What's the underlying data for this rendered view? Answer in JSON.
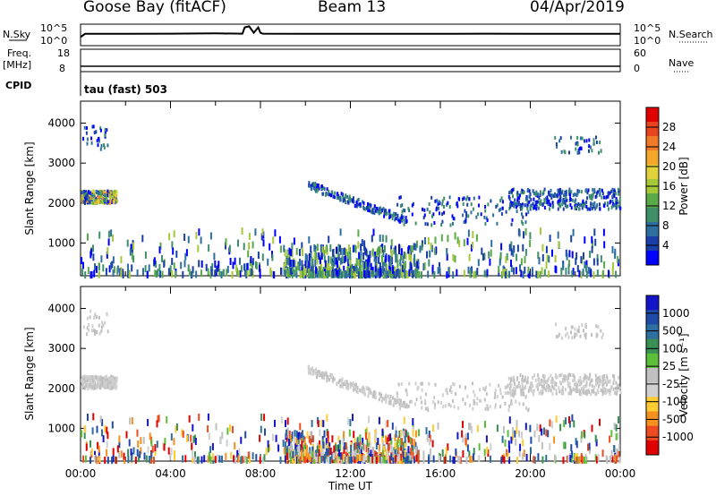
{
  "header": {
    "station": "Goose Bay (fitACF)",
    "beam": "Beam 13",
    "date": "04/Apr/2019"
  },
  "summary_labels": {
    "nsky": "N.Sky",
    "nsky_hi": "10^5",
    "nsky_lo": "10^0",
    "nsearch": "N.Search",
    "nsearch_hi": "10^5",
    "nsearch_lo": "10^0",
    "freq": "Freq.",
    "freq_unit": "[MHz]",
    "freq_hi": "18",
    "freq_lo": "8",
    "nave": "Nave",
    "nave_hi": "60",
    "nave_lo": "0",
    "cpid": "CPID",
    "mode": "tau (fast) 503"
  },
  "chart_data": [
    {
      "type": "line",
      "title": "",
      "xlabel": "",
      "series": [
        {
          "name": "N.Sky",
          "x_hours": [
            0,
            0.2,
            2,
            4,
            6,
            7.2,
            7.3,
            7.5,
            7.7,
            7.9,
            8.0,
            8.1,
            10,
            12,
            14,
            16,
            18,
            20,
            22,
            24
          ],
          "values": [
            0.4,
            0.55,
            0.55,
            0.56,
            0.57,
            0.56,
            0.85,
            0.9,
            0.6,
            0.85,
            0.6,
            0.56,
            0.55,
            0.55,
            0.55,
            0.55,
            0.56,
            0.55,
            0.55,
            0.55
          ]
        }
      ],
      "ylim": [
        0,
        1
      ],
      "xlim_hours": [
        0,
        24
      ]
    },
    {
      "type": "line",
      "title": "",
      "series": [
        {
          "name": "Freq.",
          "x_hours": [
            0,
            24
          ],
          "values": [
            10.4,
            10.4
          ]
        }
      ],
      "ylim": [
        8,
        18
      ],
      "xlim_hours": [
        0,
        24
      ]
    },
    {
      "type": "heatmap",
      "title": "",
      "ylabel": "Slant Range [km]",
      "colorbar_label": "Power [dB]",
      "yticks": [
        1000,
        2000,
        3000,
        4000
      ],
      "ylim": [
        180,
        4550
      ],
      "xlim_hours": [
        0,
        24
      ],
      "colorbar_ticks": [
        "4",
        "8",
        "12",
        "16",
        "20",
        "24",
        "28"
      ],
      "colorbar_colors": [
        "#0000ff",
        "#1a3fa8",
        "#2e6fa0",
        "#3f8f6a",
        "#5aaa4a",
        "#a6c93a",
        "#e0d23a",
        "#f4a72a",
        "#f0792a",
        "#e84420",
        "#e00000"
      ]
    },
    {
      "type": "heatmap",
      "title": "",
      "ylabel": "Slant Range [km]",
      "xlabel": "Time UT",
      "colorbar_label": "Velocity [m s⁻¹]",
      "yticks": [
        1000,
        2000,
        3000,
        4000
      ],
      "ylim": [
        180,
        4550
      ],
      "xlim_hours": [
        0,
        24
      ],
      "xticklabels": [
        "00:00",
        "04:00",
        "08:00",
        "12:00",
        "16:00",
        "20:00",
        "00:00"
      ],
      "colorbar_ticks": [
        "-1000",
        "-500",
        "-100",
        "-25",
        "25",
        "100",
        "500",
        "1000"
      ],
      "colorbar_colors": [
        "#e00000",
        "#f04a20",
        "#f4901f",
        "#ffcc33",
        "#d0d0d0",
        "#c0c0c0",
        "#5cbf3a",
        "#3a8f55",
        "#2e6f9f",
        "#1f4aa8",
        "#1414c8"
      ]
    }
  ]
}
